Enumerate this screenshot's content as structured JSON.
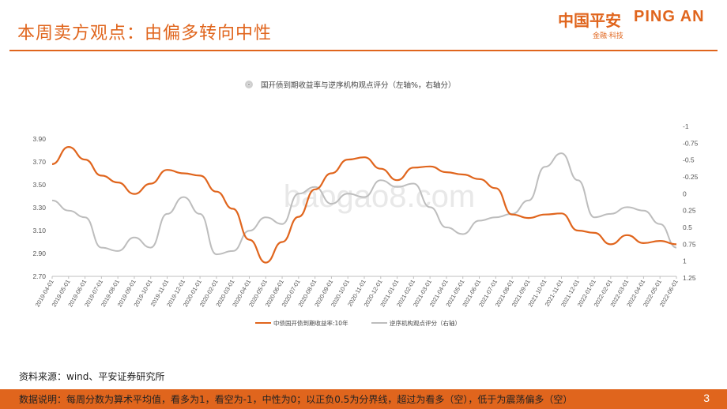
{
  "header": {
    "title": "本周卖方观点：由偏多转向中性",
    "logo_cn": "中国平安",
    "logo_en": "PING AN",
    "logo_sub": "金融·科技"
  },
  "watermark": "baogao8.com",
  "source": "资料来源：wind、平安证券研究所",
  "footer": {
    "note": "数据说明：每周分数为算术平均值，看多为1，看空为-1，中性为0；以正负0.5为分界线，超过为看多（空），低于为震荡偏多（空）",
    "page": "3"
  },
  "colors": {
    "accent": "#e0651d",
    "yield_line": "#e0651d",
    "score_line": "#bdbdbd"
  },
  "chart_data": {
    "type": "line",
    "title": "国开债到期收益率与逆序机构观点评分（左轴%，右轴分）",
    "x": [
      "2019-04-01",
      "2019-05-01",
      "2019-06-01",
      "2019-07-01",
      "2019-08-01",
      "2019-09-01",
      "2019-10-01",
      "2019-11-01",
      "2019-12-01",
      "2020-01-01",
      "2020-02-01",
      "2020-03-01",
      "2020-04-01",
      "2020-05-01",
      "2020-06-01",
      "2020-07-01",
      "2020-08-01",
      "2020-09-01",
      "2020-10-01",
      "2020-11-01",
      "2020-12-01",
      "2021-01-01",
      "2021-02-01",
      "2021-03-01",
      "2021-04-01",
      "2021-05-01",
      "2021-06-01",
      "2021-07-01",
      "2021-08-01",
      "2021-09-01",
      "2021-10-01",
      "2021-11-01",
      "2021-12-01",
      "2022-01-01",
      "2022-02-01",
      "2022-03-01",
      "2022-04-01",
      "2022-05-01",
      "2022-06-01"
    ],
    "left_axis": {
      "ticks": [
        "3.90",
        "3.70",
        "3.50",
        "3.30",
        "3.10",
        "2.90",
        "2.70"
      ],
      "range": [
        2.7,
        3.9
      ]
    },
    "right_axis": {
      "ticks": [
        "-1",
        "-0.75",
        "-0.5",
        "-0.25",
        "0",
        "0.25",
        "0.5",
        "0.75",
        "1",
        "1.25"
      ],
      "range": [
        -1,
        1.25
      ],
      "inverted": true
    },
    "series": [
      {
        "name": "中债国开债到期收益率:10年",
        "axis": "left",
        "values": [
          3.68,
          3.83,
          3.72,
          3.58,
          3.52,
          3.42,
          3.51,
          3.63,
          3.6,
          3.58,
          3.44,
          3.29,
          3.02,
          2.82,
          3.0,
          3.22,
          3.46,
          3.6,
          3.72,
          3.74,
          3.64,
          3.54,
          3.65,
          3.66,
          3.61,
          3.59,
          3.55,
          3.47,
          3.24,
          3.21,
          3.24,
          3.25,
          3.1,
          3.08,
          2.98,
          3.06,
          2.99,
          3.01,
          2.98
        ]
      },
      {
        "name": "逆序机构观点评分（右轴）",
        "axis": "right",
        "values": [
          0.1,
          0.25,
          0.35,
          0.8,
          0.85,
          0.65,
          0.8,
          0.3,
          0.05,
          0.3,
          0.9,
          0.85,
          0.55,
          0.35,
          0.45,
          0.0,
          -0.1,
          0.15,
          0.0,
          0.05,
          -0.2,
          -0.1,
          -0.15,
          0.2,
          0.5,
          0.6,
          0.4,
          0.35,
          0.3,
          0.1,
          -0.4,
          -0.6,
          -0.2,
          0.35,
          0.3,
          0.2,
          0.25,
          0.45,
          0.8
        ]
      }
    ],
    "legend_position": "bottom"
  }
}
